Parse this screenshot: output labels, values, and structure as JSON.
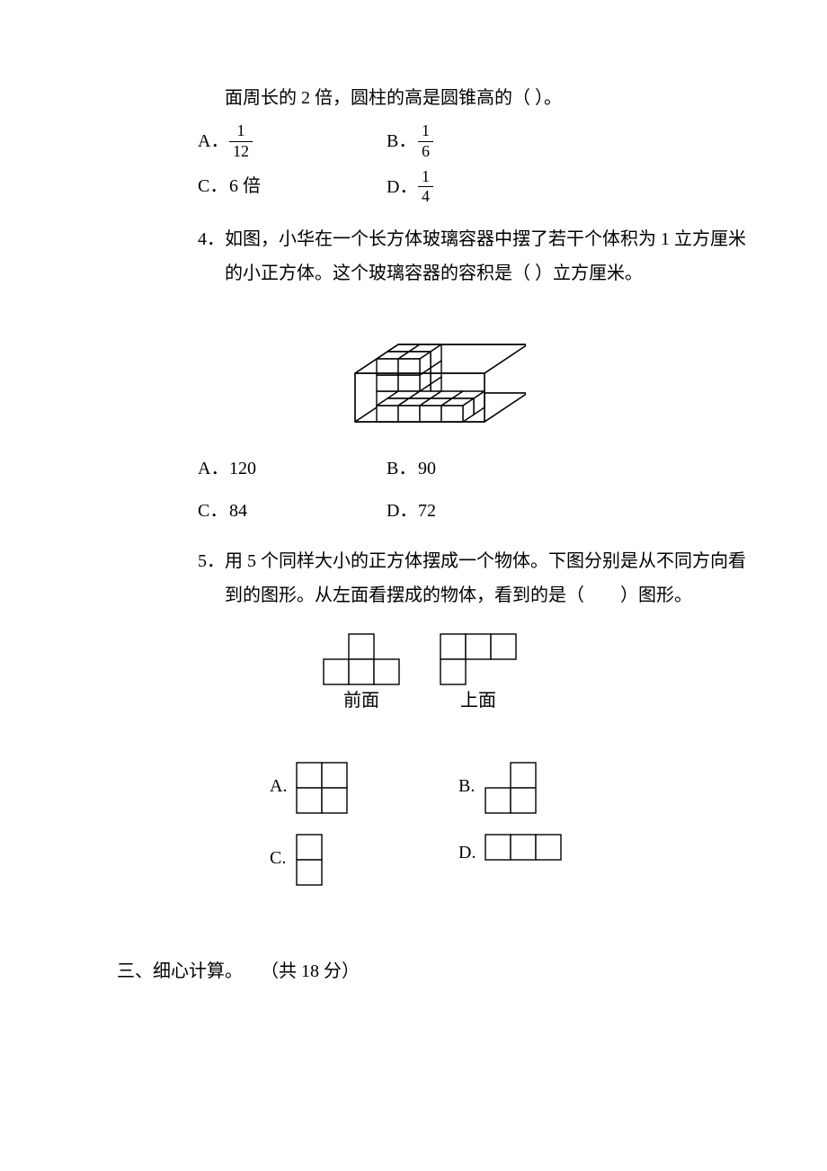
{
  "q3_tail": {
    "line": "面周长的 2 倍，圆柱的高是圆锥高的（ ）。",
    "opts": {
      "A": {
        "label": "A．",
        "num": "1",
        "den": "12"
      },
      "B": {
        "label": "B．",
        "num": "1",
        "den": "6"
      },
      "C": {
        "label": "C．",
        "text": "6 倍"
      },
      "D": {
        "label": "D．",
        "num": "1",
        "den": "4"
      }
    }
  },
  "q4": {
    "stem": "4．如图，小华在一个长方体玻璃容器中摆了若干个体积为 1 立方厘米的小正方体。这个玻璃容器的容积是（ ）立方厘米。",
    "opts": {
      "A": {
        "label": "A．",
        "text": "120"
      },
      "B": {
        "label": "B．",
        "text": "90"
      },
      "C": {
        "label": "C．",
        "text": "84"
      },
      "D": {
        "label": "D．",
        "text": "72"
      }
    }
  },
  "q5": {
    "stem": "5．用 5 个同样大小的正方体摆成一个物体。下图分别是从不同方向看到的图形。从左面看摆成的物体，看到的是（  ）图形。",
    "views": {
      "front": "前面",
      "top": "上面"
    },
    "opts": {
      "A": "A.",
      "B": "B.",
      "C": "C.",
      "D": "D."
    }
  },
  "section3": {
    "heading": "三、细心计算。 （共 18 分）"
  },
  "style": {
    "cell": 28,
    "stroke": "#000000",
    "stroke_width": 1.4
  }
}
